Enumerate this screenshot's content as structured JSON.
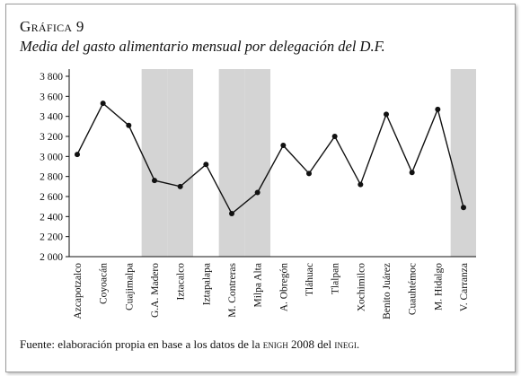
{
  "figure_label": "Gráfica 9",
  "title": "Media del gasto alimentario mensual por delegación del D.F.",
  "source_prefix": "Fuente: elaboración propia en base a los datos de la",
  "source_enigh": "enigh",
  "source_mid": "2008 del",
  "source_inegi": "inegi",
  "source_end": ".",
  "chart_data": {
    "type": "line",
    "title": "Media del gasto alimentario mensual por delegación del D.F.",
    "categories": [
      "Azcapotzalco",
      "Coyoacán",
      "Cuajimalpa",
      "G.A. Madero",
      "Iztacalco",
      "Iztapalapa",
      "M. Contreras",
      "Milpa Alta",
      "A. Obregón",
      "Tláhuac",
      "Tlalpan",
      "Xochimilco",
      "Benito Juárez",
      "Cuauhtémoc",
      "M. Hidalgo",
      "V. Carranza"
    ],
    "values": [
      3020,
      3530,
      3310,
      2760,
      2700,
      2920,
      2430,
      2640,
      3110,
      2830,
      3200,
      2720,
      3420,
      2840,
      3470,
      2490
    ],
    "ylim": [
      2000,
      3800
    ],
    "yticks": [
      "2 000",
      "2 200",
      "2 400",
      "2 600",
      "2 800",
      "3 000",
      "3 200",
      "3 400",
      "3 600",
      "3 800"
    ],
    "ytick_values": [
      2000,
      2200,
      2400,
      2600,
      2800,
      3000,
      3200,
      3400,
      3600,
      3800
    ],
    "shaded_categories": [
      "G.A. Madero",
      "Iztacalco",
      "M. Contreras",
      "Milpa Alta",
      "V. Carranza"
    ],
    "colors": {
      "line": "#111111",
      "shade": "#d4d4d4"
    },
    "grid": false,
    "legend": "none"
  }
}
